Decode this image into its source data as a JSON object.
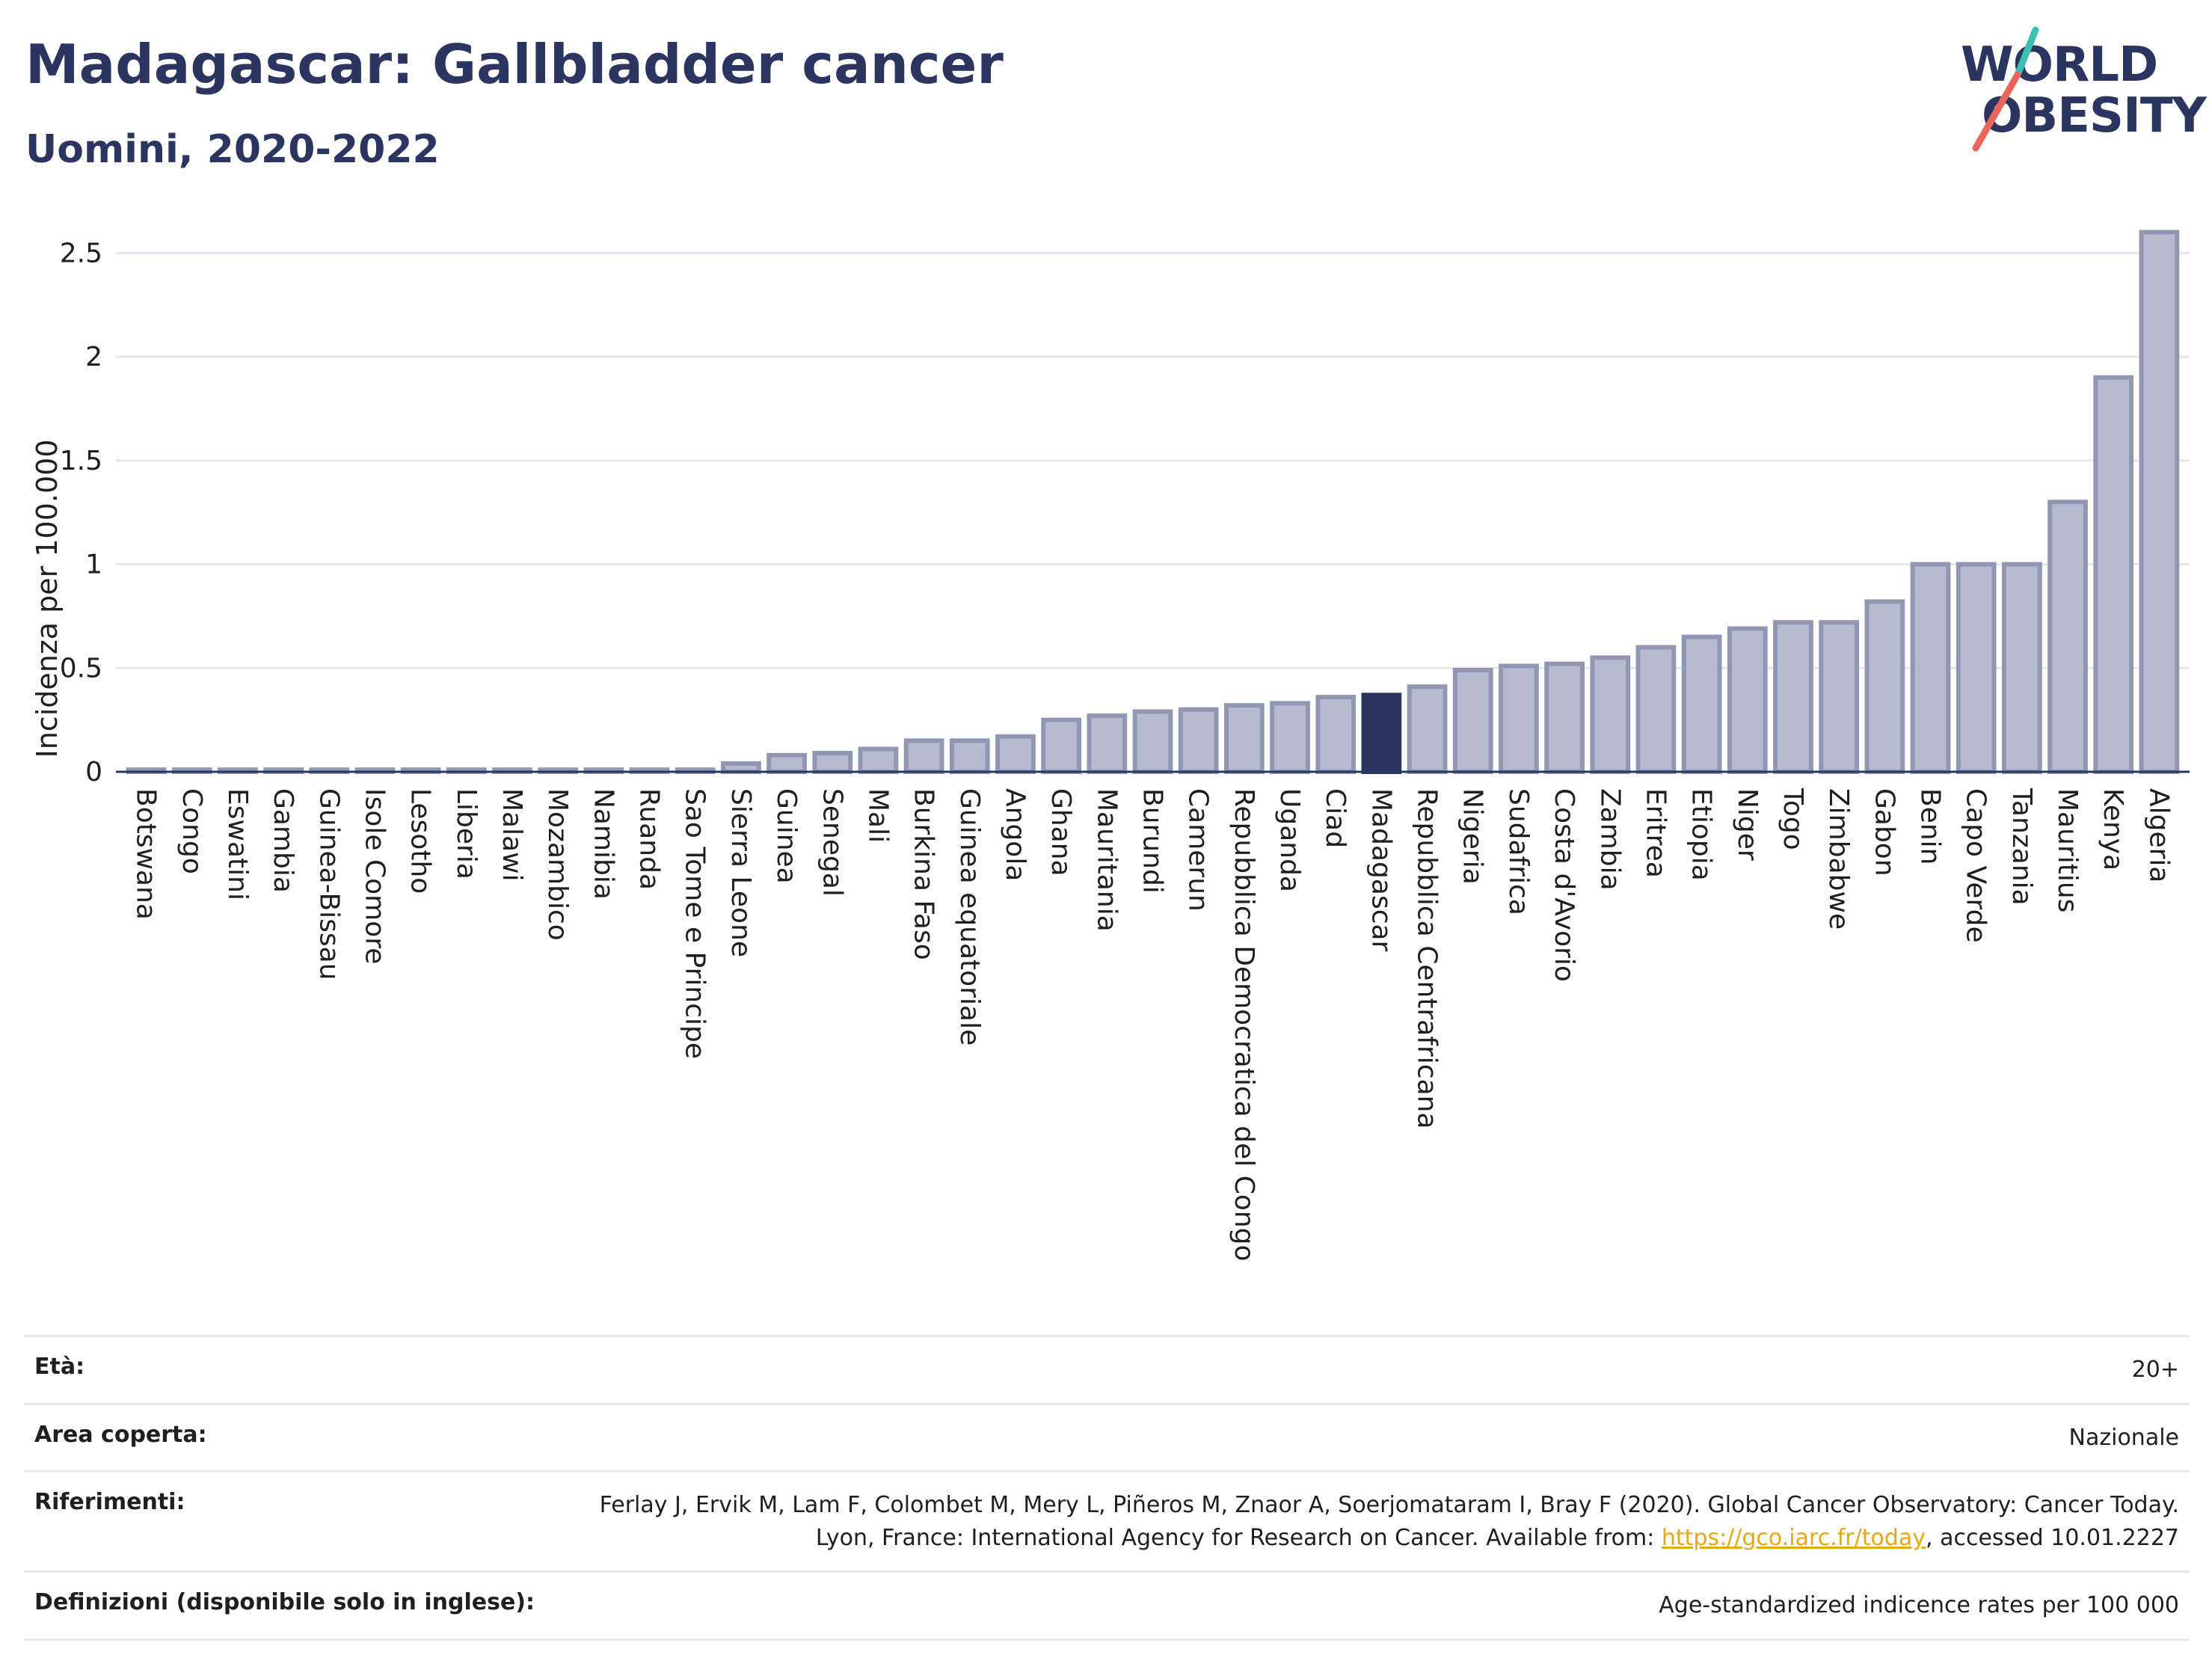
{
  "header": {
    "title": "Madagascar: Gallbladder cancer",
    "subtitle": "Uomini, 2020-2022"
  },
  "logo": {
    "line1": "WORLD",
    "line2": "OBESITY",
    "text_color": "#2b3560",
    "accent_teal": "#3bbfb0",
    "accent_red": "#e8665a"
  },
  "chart_data": {
    "type": "bar",
    "title": "",
    "xlabel": "",
    "ylabel": "Incidenza per 100.000",
    "ylim": [
      0,
      2.65
    ],
    "yticks": [
      0,
      0.5,
      1,
      1.5,
      2,
      2.5
    ],
    "ytick_labels": [
      "0",
      "0.5",
      "1",
      "1.5",
      "2",
      "2.5"
    ],
    "grid": true,
    "highlight": "Madagascar",
    "colors": {
      "bar": "#b6bccd",
      "bar_edge": "#8f97b2",
      "highlight": "#2b3560"
    },
    "categories": [
      "Botswana",
      "Congo",
      "Eswatini",
      "Gambia",
      "Guinea-Bissau",
      "Isole Comore",
      "Lesotho",
      "Liberia",
      "Malawi",
      "Mozambico",
      "Namibia",
      "Ruanda",
      "Sao Tome e Principe",
      "Sierra Leone",
      "Guinea",
      "Senegal",
      "Mali",
      "Burkina Faso",
      "Guinea equatoriale",
      "Angola",
      "Ghana",
      "Mauritania",
      "Burundi",
      "Camerun",
      "Repubblica Democratica del Congo",
      "Uganda",
      "Ciad",
      "Madagascar",
      "Repubblica Centrafricana",
      "Nigeria",
      "Sudafrica",
      "Costa d'Avorio",
      "Zambia",
      "Eritrea",
      "Etiopia",
      "Niger",
      "Togo",
      "Zimbabwe",
      "Gabon",
      "Benin",
      "Capo Verde",
      "Tanzania",
      "Mauritius",
      "Kenya",
      "Algeria"
    ],
    "values": [
      0.01,
      0.01,
      0.01,
      0.01,
      0.01,
      0.01,
      0.01,
      0.01,
      0.01,
      0.01,
      0.01,
      0.01,
      0.01,
      0.04,
      0.08,
      0.09,
      0.11,
      0.15,
      0.15,
      0.17,
      0.25,
      0.27,
      0.29,
      0.3,
      0.32,
      0.33,
      0.36,
      0.37,
      0.41,
      0.49,
      0.51,
      0.52,
      0.55,
      0.6,
      0.65,
      0.69,
      0.72,
      0.72,
      0.82,
      1.0,
      1.0,
      1.0,
      1.3,
      1.9,
      2.6
    ]
  },
  "meta": {
    "eta_label": "Età:",
    "eta_value": "20+",
    "area_label": "Area coperta:",
    "area_value": "Nazionale",
    "ref_label": "Riferimenti:",
    "ref_text_1": "Ferlay J, Ervik M, Lam F, Colombet M, Mery L, Piñeros M, Znaor A, Soerjomataram I, Bray F (2020). Global Cancer Observatory: Cancer Today. Lyon, France: International Agency for Research on Cancer. Available from: ",
    "ref_link": "https://gco.iarc.fr/today",
    "ref_text_2": ", accessed 10.01.2227",
    "def_label": "Definizioni (disponibile solo in inglese):",
    "def_value": "Age-standardized indicence rates per 100 000"
  }
}
